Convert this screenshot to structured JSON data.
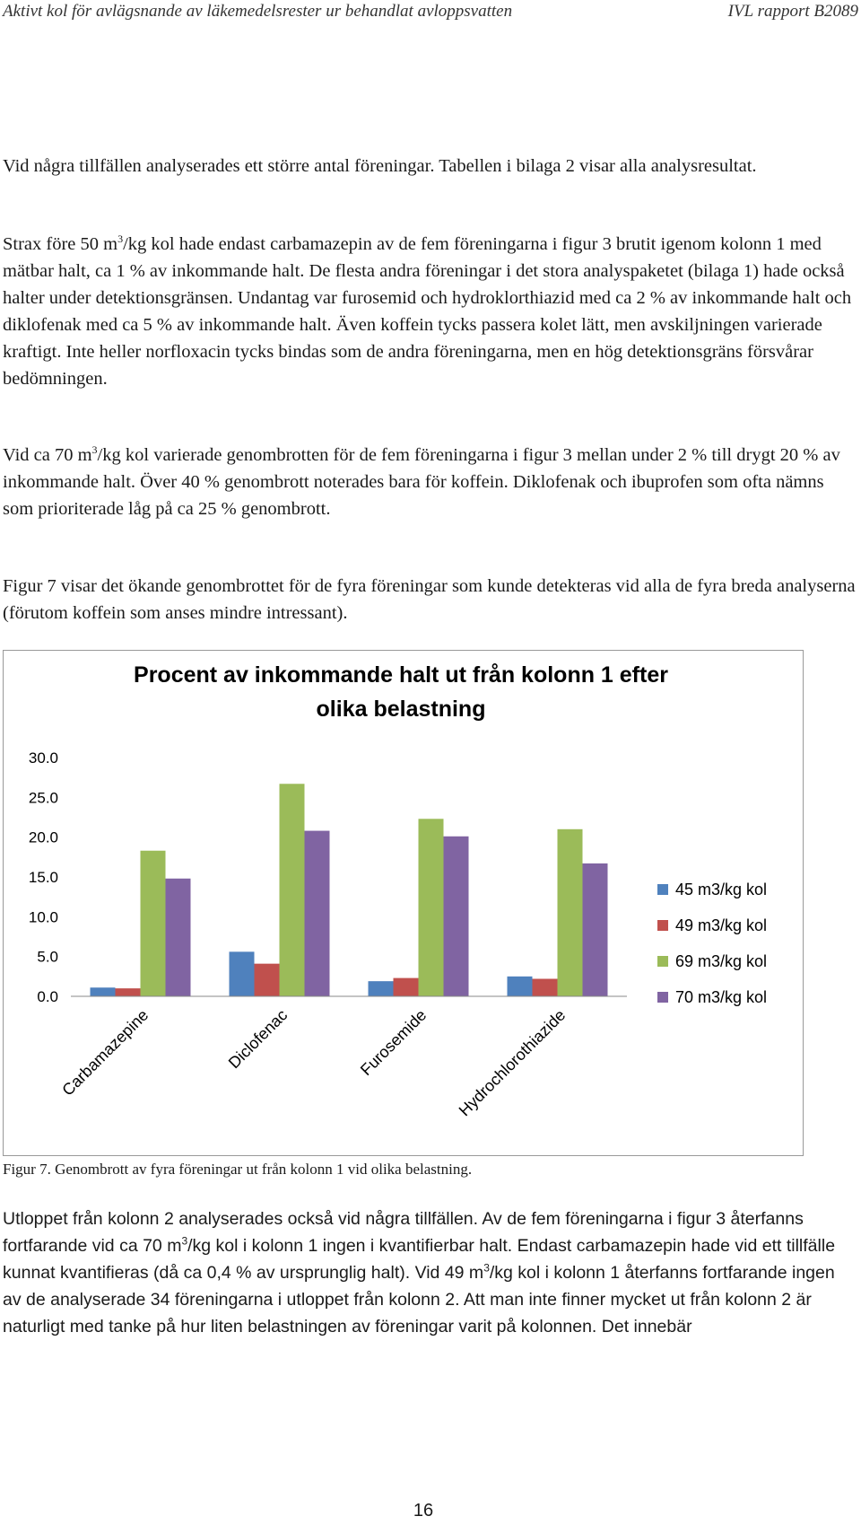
{
  "header": {
    "left": "Aktivt kol för avlägsnande av läkemedelsrester ur behandlat avloppsvatten",
    "right": "IVL rapport B2089"
  },
  "paragraphs": [
    {
      "parts": [
        "Vid några tillfällen analyserades ett större antal föreningar. Tabellen i bilaga 2 visar alla analysresultat."
      ]
    },
    {
      "parts": [
        "Strax före 50 m",
        "3",
        "/kg kol hade endast carbamazepin av de fem föreningarna i figur 3 brutit igenom kolonn 1 med mätbar halt, ca 1 % av inkommande halt. De flesta andra föreningar i det stora analyspaketet (bilaga 1) hade också halter under detektionsgränsen. Undantag var furosemid och hydroklorthiazid med ca 2 % av inkommande halt och diklofenak med ca 5 % av inkommande halt. Även koffein tycks passera kolet lätt, men avskiljningen varierade kraftigt. Inte heller norfloxacin tycks bindas som de andra föreningarna, men en hög detektionsgräns försvårar bedömningen."
      ]
    },
    {
      "parts": [
        "Vid ca 70 m",
        "3",
        "/kg kol varierade genombrotten för de fem föreningarna i figur 3 mellan under 2 % till drygt 20 % av inkommande halt. Över 40 % genombrott noterades bara för koffein. Diklofenak och ibuprofen som ofta nämns som prioriterade låg på ca 25 % genombrott."
      ]
    },
    {
      "parts": [
        "Figur 7 visar det ökande genombrottet för de fyra föreningar som kunde detekteras vid alla de fyra breda analyserna (förutom koffein som anses mindre intressant)."
      ]
    }
  ],
  "chart_data": {
    "type": "bar",
    "title": "Procent av inkommande halt ut från kolonn 1 efter olika belastning",
    "categories": [
      "Carbamazepine",
      "Diclofenac",
      "Furosemide",
      "Hydrochlorothiazide"
    ],
    "series": [
      {
        "name": "45 m3/kg kol",
        "color": "#4f81bd",
        "values": [
          1.1,
          5.6,
          1.9,
          2.5
        ]
      },
      {
        "name": "49 m3/kg kol",
        "color": "#c0504d",
        "values": [
          1.0,
          4.1,
          2.3,
          2.2
        ]
      },
      {
        "name": "69 m3/kg kol",
        "color": "#9bbb59",
        "values": [
          18.3,
          26.7,
          22.3,
          21.0
        ]
      },
      {
        "name": "70 m3/kg kol",
        "color": "#8064a2",
        "values": [
          14.8,
          20.8,
          20.1,
          16.7
        ]
      }
    ],
    "ylim": [
      0,
      30
    ],
    "yticks": [
      {
        "value": 0,
        "label": "0.0"
      },
      {
        "value": 5,
        "label": "5.0"
      },
      {
        "value": 10,
        "label": "10.0"
      },
      {
        "value": 15,
        "label": "15.0"
      },
      {
        "value": 20,
        "label": "20.0"
      },
      {
        "value": 25,
        "label": "25.0"
      },
      {
        "value": 30,
        "label": "30.0"
      }
    ],
    "grid": false,
    "legend": "right"
  },
  "caption": "Figur 7.  Genombrott av fyra föreningar ut från kolonn 1 vid olika belastning.",
  "after": {
    "parts": [
      "Utloppet från kolonn 2 analyserades också vid några tillfällen. Av de fem föreningarna i figur 3 återfanns fortfarande vid ca 70 m",
      "3",
      "/kg kol i kolonn 1 ingen i kvantifierbar halt. Endast carbamazepin hade vid ett tillfälle kunnat kvantifieras (då ca 0,4 % av ursprunglig halt). Vid 49 m",
      "3",
      "/kg kol i kolonn 1 återfanns fortfarande ingen av de analyserade 34 föreningarna i utloppet från kolonn 2. Att man inte finner mycket ut från kolonn 2 är naturligt med tanke på hur liten belastningen av föreningar varit på kolonnen. Det innebär"
    ]
  },
  "page_number": "16"
}
